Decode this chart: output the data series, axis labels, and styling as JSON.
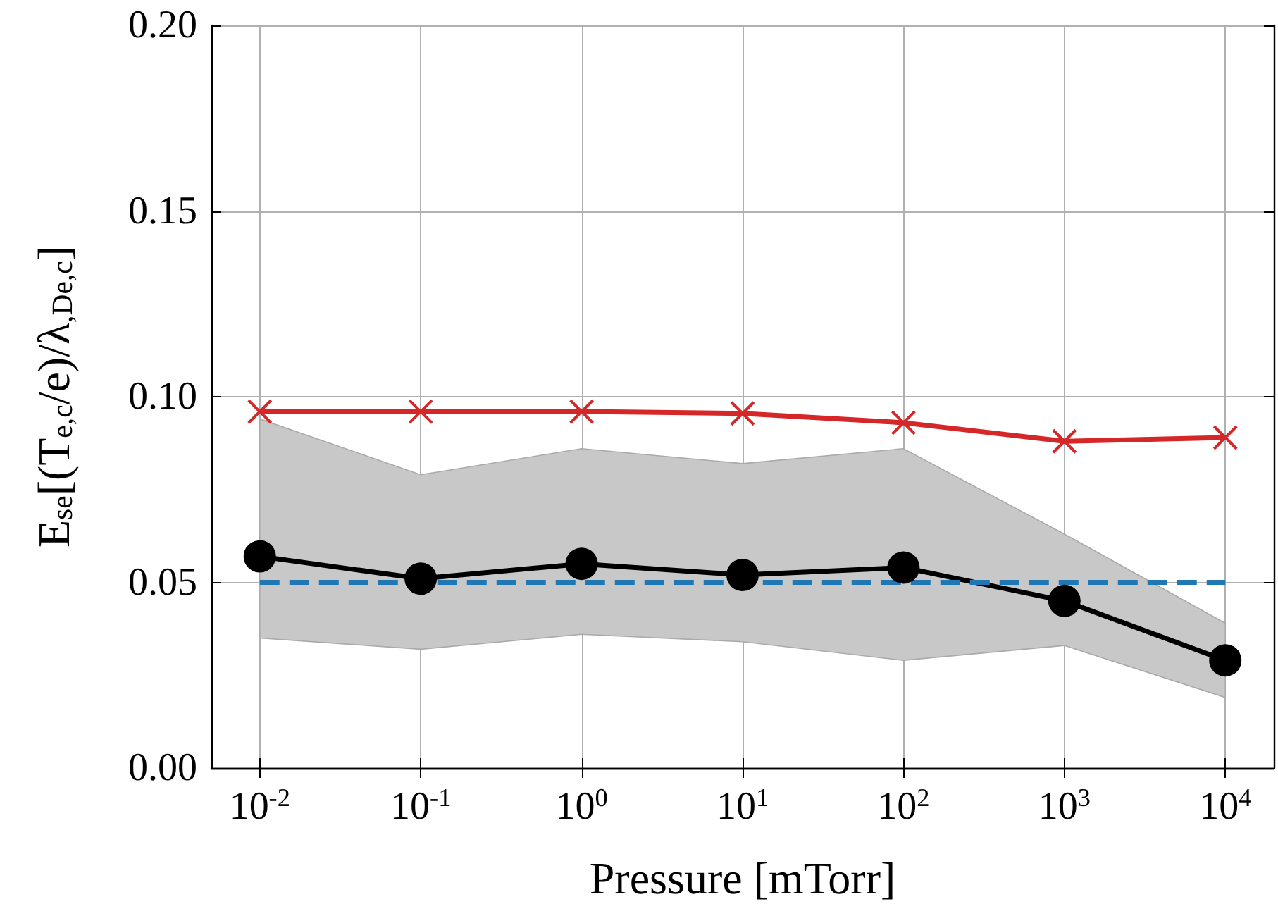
{
  "chart_data": {
    "type": "line",
    "xlabel": "Pressure [mTorr]",
    "ylabel": "E$_{se}$[(T$_{e,c}$/e)/λ$_{,De,c}$]",
    "x": [
      0.01,
      0.1,
      1,
      10,
      100,
      1000,
      10000
    ],
    "log": "x",
    "xlim": [
      0.005,
      20000
    ],
    "xticks": [
      {
        "value": 0.01,
        "label": "10$^{-2}$"
      },
      {
        "value": 0.1,
        "label": "10$^{-1}$"
      },
      {
        "value": 1,
        "label": "10$^{0}$"
      },
      {
        "value": 10,
        "label": "10$^{1}$"
      },
      {
        "value": 100,
        "label": "10$^{2}$"
      },
      {
        "value": 1000,
        "label": "10$^{3}$"
      },
      {
        "value": 10000,
        "label": "10$^{4}$"
      }
    ],
    "ylim": [
      0,
      0.2
    ],
    "yticks": [
      {
        "value": 0,
        "label": "0.00"
      },
      {
        "value": 0.05,
        "label": "0.05"
      },
      {
        "value": 0.1,
        "label": "0.10"
      },
      {
        "value": 0.15,
        "label": "0.15"
      },
      {
        "value": 0.2,
        "label": "0.20"
      }
    ],
    "grid": true,
    "series": [
      {
        "color": "#d62728",
        "marker": "cross",
        "values": [
          0.096,
          0.096,
          0.096,
          0.0955,
          0.093,
          0.088,
          0.089
        ]
      },
      {
        "color": "#000000",
        "marker": "circle",
        "values": [
          0.057,
          0.051,
          0.055,
          0.052,
          0.054,
          0.045,
          0.029
        ],
        "lower": [
          0.035,
          0.032,
          0.036,
          0.034,
          0.029,
          0.033,
          0.019
        ],
        "upper": [
          0.094,
          0.079,
          0.086,
          0.082,
          0.086,
          0.063,
          0.039
        ]
      },
      {
        "color": "#1f77b4",
        "marker": "none",
        "line_style": "dashed",
        "x": [
          0.01,
          10000
        ],
        "values": [
          0.05,
          0.05
        ]
      }
    ]
  }
}
